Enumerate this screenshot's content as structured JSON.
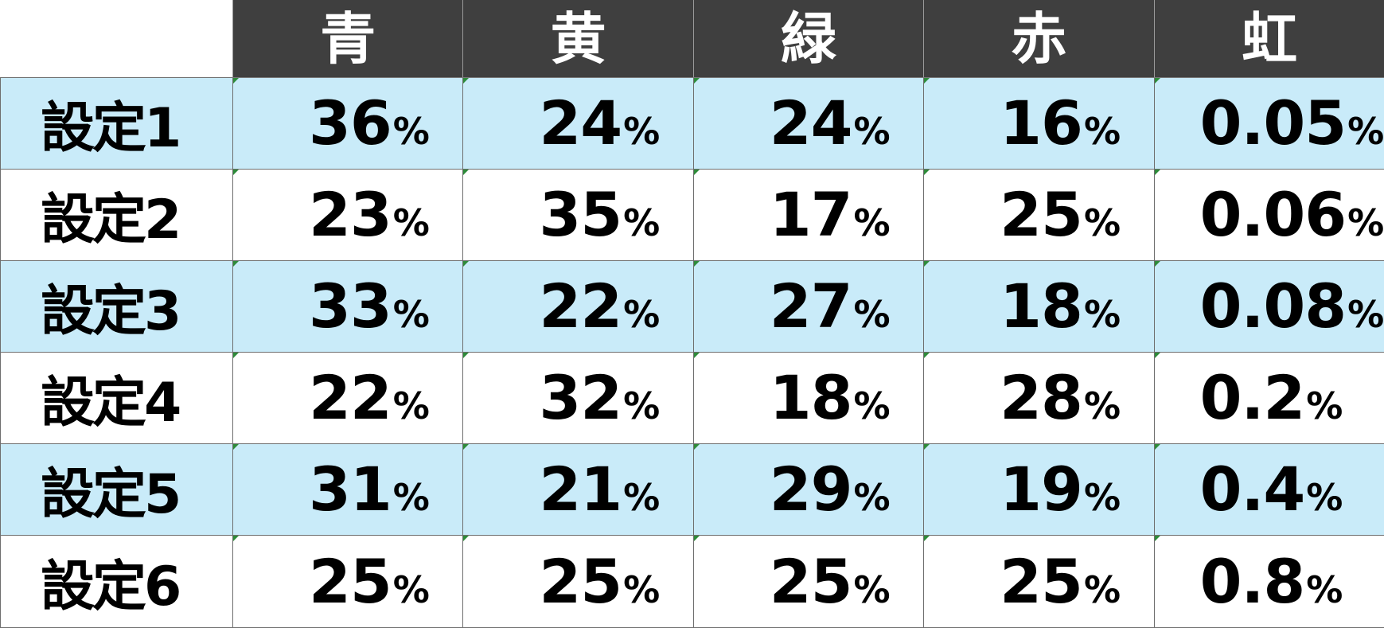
{
  "table": {
    "corner": "",
    "columns": [
      "青",
      "黄",
      "緑",
      "赤",
      "虹"
    ],
    "unit": "%",
    "rows": [
      {
        "label": "設定1",
        "values": [
          "36",
          "24",
          "24",
          "16",
          "0.05"
        ]
      },
      {
        "label": "設定2",
        "values": [
          "23",
          "35",
          "17",
          "25",
          "0.06"
        ]
      },
      {
        "label": "設定3",
        "values": [
          "33",
          "22",
          "27",
          "18",
          "0.08"
        ]
      },
      {
        "label": "設定4",
        "values": [
          "22",
          "32",
          "18",
          "28",
          "0.2"
        ]
      },
      {
        "label": "設定5",
        "values": [
          "31",
          "21",
          "29",
          "19",
          "0.4"
        ]
      },
      {
        "label": "設定6",
        "values": [
          "25",
          "25",
          "25",
          "25",
          "0.8"
        ]
      }
    ]
  },
  "colors": {
    "header_bg": "#3f3f3f",
    "header_text": "#ffffff",
    "shaded_row_bg": "#c9ebf9",
    "plain_row_bg": "#ffffff",
    "grid_line": "#6e6e6e",
    "cell_marker": "#2e8b3a"
  }
}
